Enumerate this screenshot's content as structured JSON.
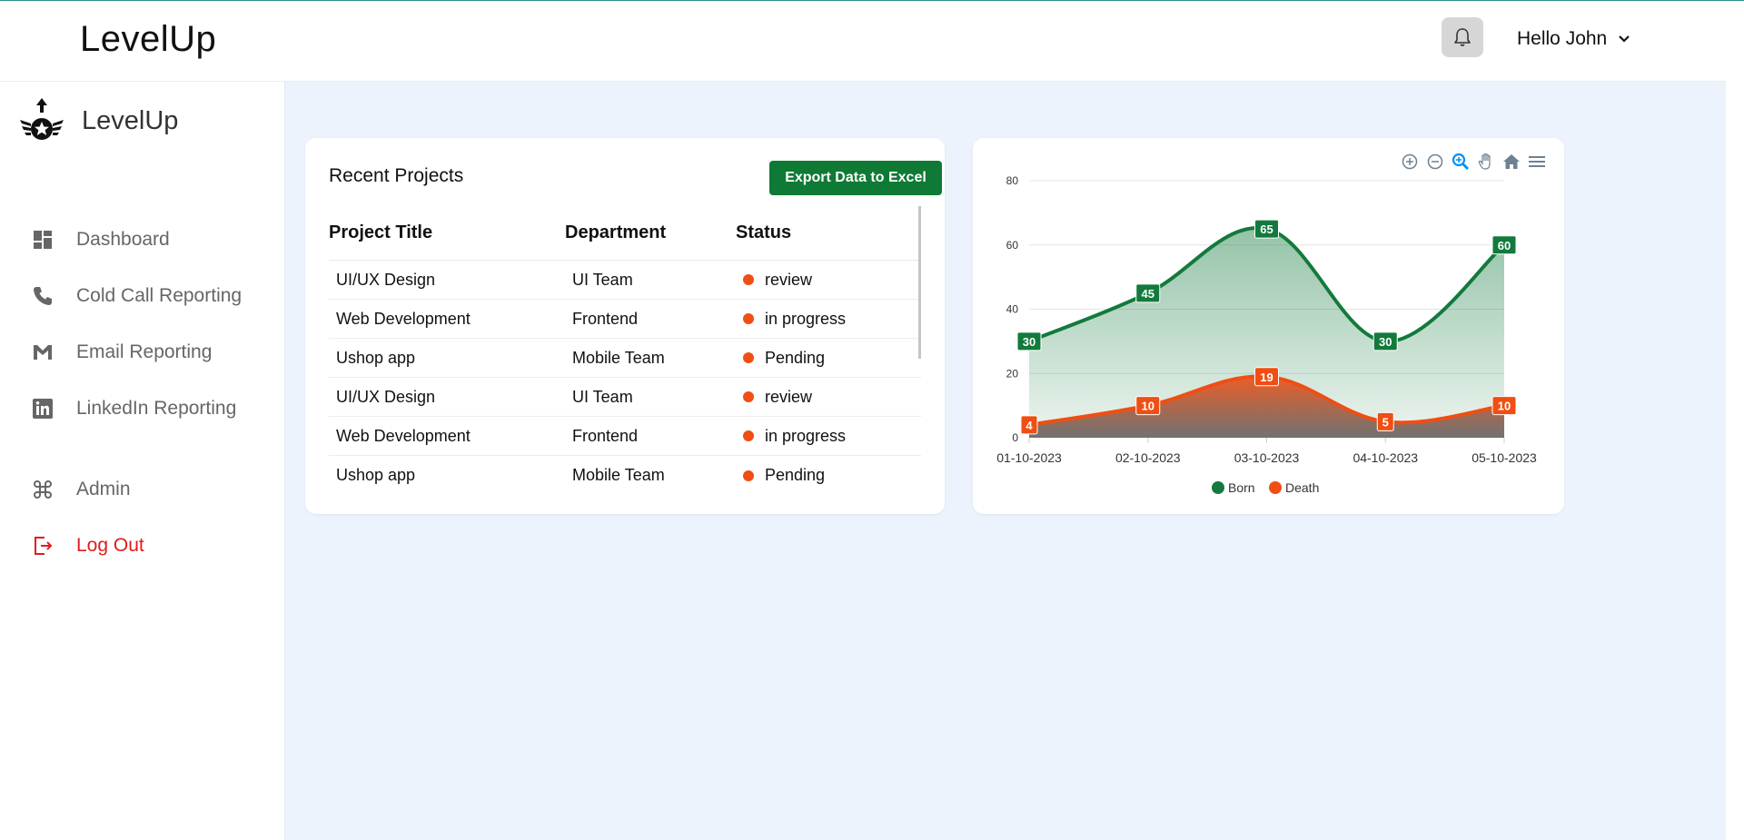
{
  "header": {
    "brand": "LevelUp",
    "greeting": "Hello John"
  },
  "sidebar": {
    "brand": "LevelUp",
    "items": [
      {
        "label": "Dashboard",
        "icon": "dashboard-icon"
      },
      {
        "label": "Cold Call Reporting",
        "icon": "phone-icon"
      },
      {
        "label": "Email Reporting",
        "icon": "gmail-icon"
      },
      {
        "label": "LinkedIn Reporting",
        "icon": "linkedin-icon"
      },
      {
        "label": "Admin",
        "icon": "command-icon"
      },
      {
        "label": "Log Out",
        "icon": "logout-icon"
      }
    ]
  },
  "projects": {
    "title": "Recent Projects",
    "export_label": "Export Data to Excel",
    "columns": [
      "Project Title",
      "Department",
      "Status"
    ],
    "rows": [
      {
        "title": "UI/UX Design",
        "department": "UI Team",
        "status": "review"
      },
      {
        "title": "Web Development",
        "department": "Frontend",
        "status": "in progress"
      },
      {
        "title": "Ushop app",
        "department": "Mobile Team",
        "status": "Pending"
      },
      {
        "title": "UI/UX Design",
        "department": "UI Team",
        "status": "review"
      },
      {
        "title": "Web Development",
        "department": "Frontend",
        "status": "in progress"
      },
      {
        "title": "Ushop app",
        "department": "Mobile Team",
        "status": "Pending"
      }
    ],
    "status_color": "#f04e13"
  },
  "chart_data": {
    "type": "area",
    "categories": [
      "01-10-2023",
      "02-10-2023",
      "03-10-2023",
      "04-10-2023",
      "05-10-2023"
    ],
    "series": [
      {
        "name": "Born",
        "values": [
          30,
          45,
          65,
          30,
          60
        ],
        "color": "#127a3c"
      },
      {
        "name": "Death",
        "values": [
          4,
          10,
          19,
          5,
          10
        ],
        "color": "#f04e13"
      }
    ],
    "yticks": [
      "0",
      "20",
      "40",
      "60",
      "80"
    ],
    "ylim": [
      0,
      80
    ],
    "grid": true,
    "legend": "bottom-center",
    "toolbar": [
      "zoom-in-icon",
      "zoom-out-icon",
      "selection-zoom-icon",
      "pan-icon",
      "reset-home-icon",
      "menu-icon"
    ]
  },
  "colors": {
    "accent": "#0f7a35",
    "danger": "#e31b1b",
    "background": "#edf3fc"
  }
}
